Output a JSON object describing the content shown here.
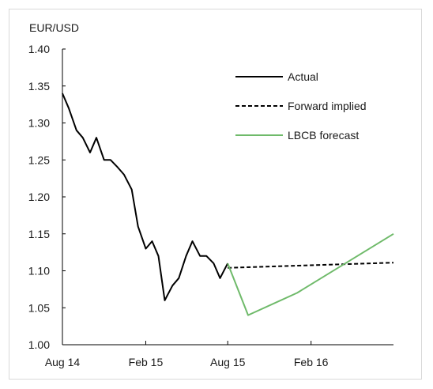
{
  "chart_data": {
    "type": "line",
    "ylabel": "EUR/USD",
    "ylim": [
      1.0,
      1.4
    ],
    "yticks": [
      "1.40",
      "1.35",
      "1.30",
      "1.25",
      "1.20",
      "1.15",
      "1.10",
      "1.05",
      "1.00"
    ],
    "xlim": [
      "2014-08-01",
      "2016-08-01"
    ],
    "xticks": [
      "Aug 14",
      "Feb 15",
      "Aug 15",
      "Feb 16"
    ],
    "grid": false,
    "legend_position": "top-right",
    "series": [
      {
        "name": "Actual",
        "style": "solid",
        "color": "#000000",
        "x": [
          "2014-08-01",
          "2014-08-15",
          "2014-09-01",
          "2014-09-15",
          "2014-10-01",
          "2014-10-15",
          "2014-11-01",
          "2014-11-15",
          "2014-12-01",
          "2014-12-15",
          "2015-01-01",
          "2015-01-15",
          "2015-02-01",
          "2015-02-15",
          "2015-03-01",
          "2015-03-15",
          "2015-04-01",
          "2015-04-15",
          "2015-05-01",
          "2015-05-15",
          "2015-06-01",
          "2015-06-15",
          "2015-07-01",
          "2015-07-15",
          "2015-08-01"
        ],
        "values": [
          1.34,
          1.32,
          1.29,
          1.28,
          1.26,
          1.28,
          1.25,
          1.25,
          1.24,
          1.23,
          1.21,
          1.16,
          1.13,
          1.14,
          1.12,
          1.06,
          1.08,
          1.09,
          1.12,
          1.14,
          1.12,
          1.12,
          1.11,
          1.09,
          1.11
        ]
      },
      {
        "name": "Forward implied",
        "style": "dashed",
        "color": "#000000",
        "x": [
          "2015-08-01",
          "2016-08-01"
        ],
        "values": [
          1.104,
          1.111
        ]
      },
      {
        "name": "LBCB forecast",
        "style": "solid",
        "color": "#6fba6a",
        "x": [
          "2015-08-01",
          "2015-09-15",
          "2016-01-01",
          "2016-08-01"
        ],
        "values": [
          1.11,
          1.04,
          1.07,
          1.15
        ]
      }
    ]
  }
}
